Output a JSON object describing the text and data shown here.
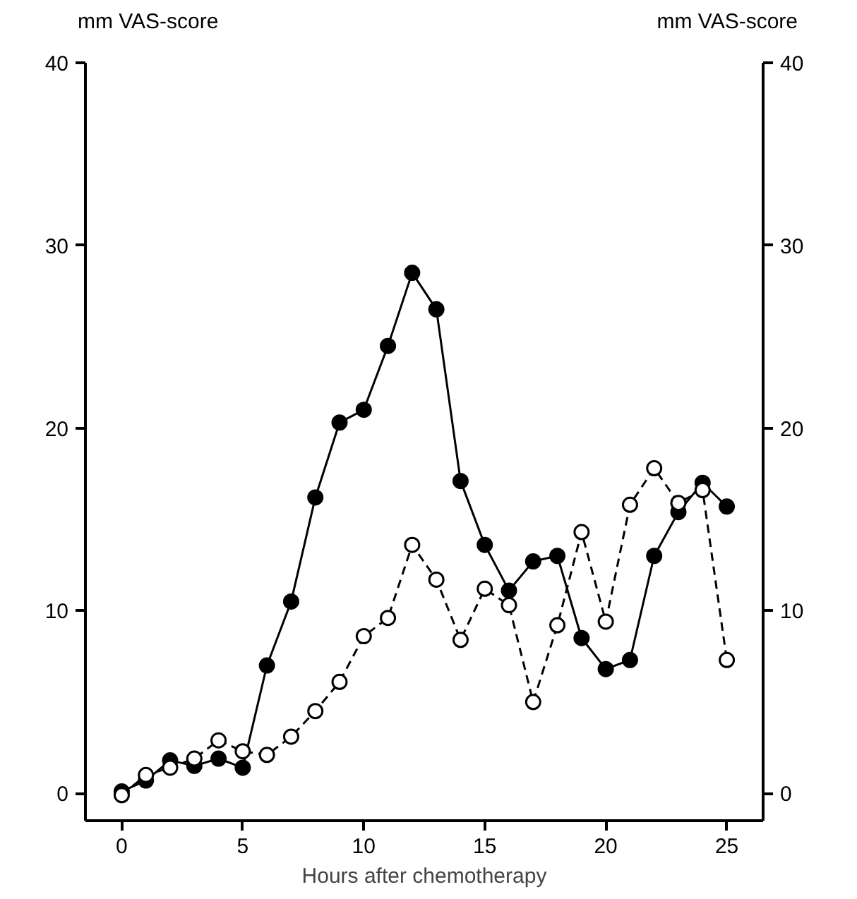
{
  "chart_data": {
    "type": "line",
    "xlabel": "Hours after chemotherapy",
    "ylabel": "mm VAS-score",
    "y2label": "mm VAS-score",
    "x": [
      0,
      1,
      2,
      3,
      4,
      5,
      6,
      7,
      8,
      9,
      10,
      11,
      12,
      13,
      14,
      15,
      16,
      17,
      18,
      19,
      20,
      21,
      22,
      23,
      24,
      25
    ],
    "series": [
      {
        "color": "#000000",
        "line_style": "solid",
        "values": [
          0.1,
          0.7,
          1.8,
          1.5,
          1.9,
          1.4,
          7.0,
          10.5,
          16.2,
          20.3,
          21.0,
          24.5,
          28.5,
          26.5,
          17.1,
          13.6,
          11.1,
          12.7,
          13.0,
          8.5,
          6.8,
          7.3,
          13.0,
          15.4,
          17.0,
          15.7
        ]
      },
      {
        "color": "#000000",
        "line_style": "dashed",
        "values": [
          -0.1,
          1.0,
          1.4,
          1.9,
          2.9,
          2.3,
          2.1,
          3.1,
          4.5,
          6.1,
          8.6,
          9.6,
          13.6,
          11.7,
          8.4,
          11.2,
          10.3,
          5.0,
          9.2,
          14.3,
          9.4,
          15.8,
          17.8,
          15.9,
          16.6,
          7.3
        ]
      }
    ],
    "marker": "circle",
    "grid": false,
    "xlim": [
      -1.5,
      26.5
    ],
    "xticks": [
      0,
      5,
      10,
      15,
      20,
      25
    ],
    "ylim": [
      -1.5,
      40
    ],
    "yticks": [
      0,
      10,
      20,
      30,
      40
    ],
    "y2lim": [
      -1.5,
      40
    ],
    "y2ticks": [
      0,
      10,
      20,
      30,
      40
    ]
  }
}
